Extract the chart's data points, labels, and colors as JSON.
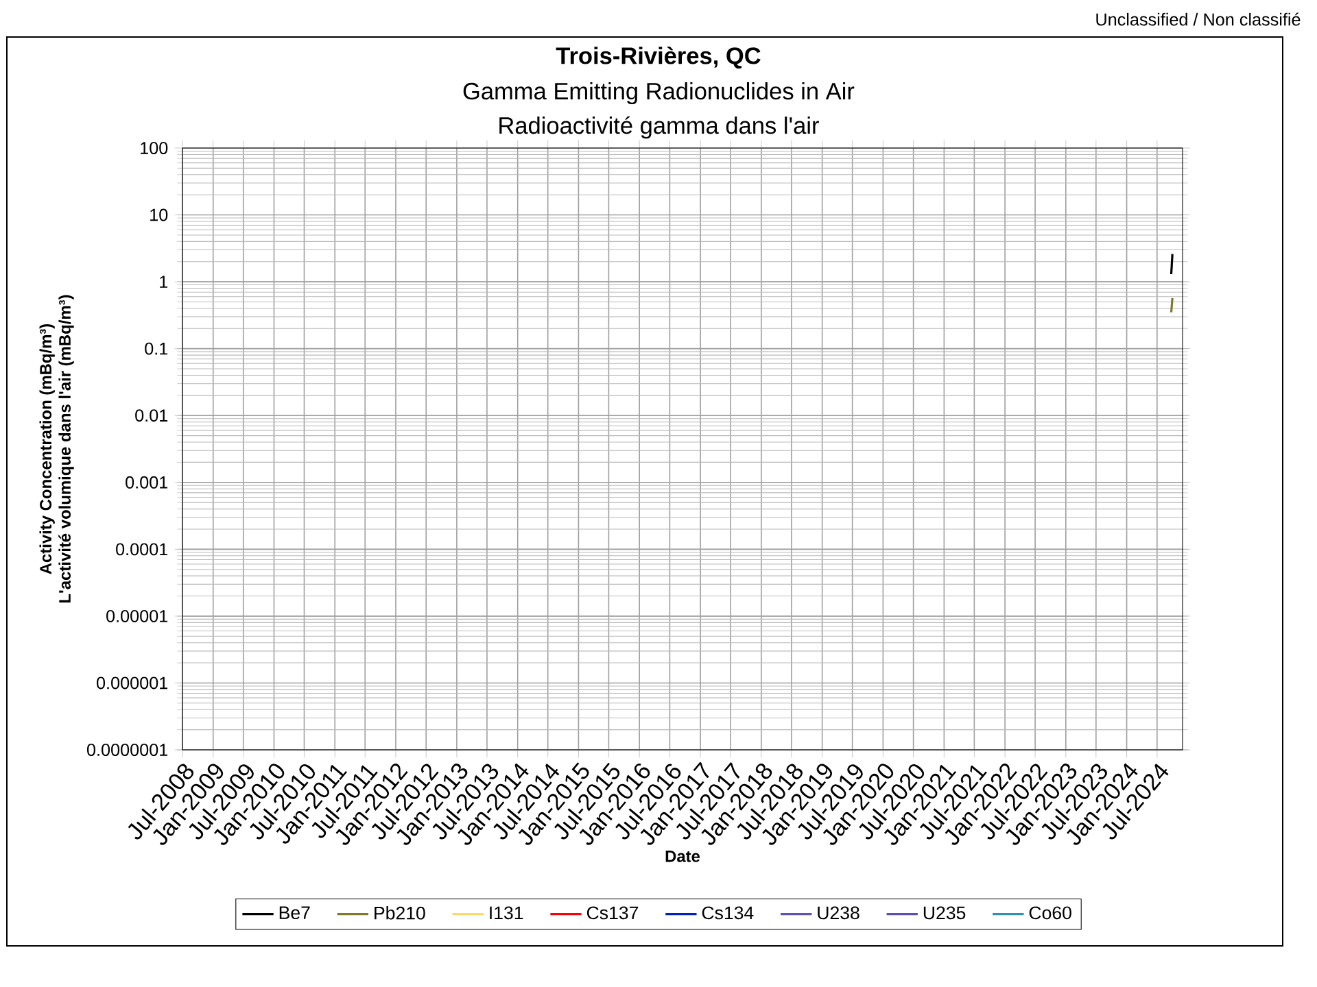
{
  "chart_data": {
    "type": "line",
    "title": "Trois-Rivières, QC",
    "subtitle": [
      "Gamma Emitting Radionuclides in Air",
      "Radioactivité gamma dans l'air"
    ],
    "xlabel": "Date",
    "ylabel": [
      "Activity Concentration  (mBq/m³)",
      "L'activité volumique dans l'air (mBq/m³)"
    ],
    "annotations": [
      "Unclassified / Non classifié"
    ],
    "x": [
      "2024-09-24",
      "2024-10-01"
    ],
    "series": [
      {
        "name": "Be7",
        "color": "#000000",
        "values": [
          1.3,
          2.6
        ]
      },
      {
        "name": "Pb210",
        "color": "#7f7a2a",
        "values": [
          0.35,
          0.57
        ]
      },
      {
        "name": "I131",
        "color": "#ffd966",
        "values": [
          null,
          null
        ]
      },
      {
        "name": "Cs137",
        "color": "#ff0000",
        "values": [
          null,
          null
        ]
      },
      {
        "name": "Cs134",
        "color": "#0020c0",
        "values": [
          null,
          null
        ]
      },
      {
        "name": "U238",
        "color": "#6050b0",
        "values": [
          null,
          null
        ]
      },
      {
        "name": "U235",
        "color": "#5f4bb6",
        "values": [
          null,
          null
        ]
      },
      {
        "name": "Co60",
        "color": "#3090b0",
        "values": [
          null,
          null
        ]
      }
    ],
    "log": "y",
    "grid": true,
    "legend": "bottom",
    "marker": "none",
    "line_style": "solid",
    "xlim": [
      "2008-07",
      "2024-12"
    ],
    "ylim": [
      1e-07,
      100
    ],
    "xticks": [
      {
        "value": "2008-07",
        "label": "Jul-2008"
      },
      {
        "value": "2009-01",
        "label": "Jan-2009"
      },
      {
        "value": "2009-07",
        "label": "Jul-2009"
      },
      {
        "value": "2010-01",
        "label": "Jan-2010"
      },
      {
        "value": "2010-07",
        "label": "Jul-2010"
      },
      {
        "value": "2011-01",
        "label": "Jan-2011"
      },
      {
        "value": "2011-07",
        "label": "Jul-2011"
      },
      {
        "value": "2012-01",
        "label": "Jan-2012"
      },
      {
        "value": "2012-07",
        "label": "Jul-2012"
      },
      {
        "value": "2013-01",
        "label": "Jan-2013"
      },
      {
        "value": "2013-07",
        "label": "Jul-2013"
      },
      {
        "value": "2014-01",
        "label": "Jan-2014"
      },
      {
        "value": "2014-07",
        "label": "Jul-2014"
      },
      {
        "value": "2015-01",
        "label": "Jan-2015"
      },
      {
        "value": "2015-07",
        "label": "Jul-2015"
      },
      {
        "value": "2016-01",
        "label": "Jan-2016"
      },
      {
        "value": "2016-07",
        "label": "Jul-2016"
      },
      {
        "value": "2017-01",
        "label": "Jan-2017"
      },
      {
        "value": "2017-07",
        "label": "Jul-2017"
      },
      {
        "value": "2018-01",
        "label": "Jan-2018"
      },
      {
        "value": "2018-07",
        "label": "Jul-2018"
      },
      {
        "value": "2019-01",
        "label": "Jan-2019"
      },
      {
        "value": "2019-07",
        "label": "Jul-2019"
      },
      {
        "value": "2020-01",
        "label": "Jan-2020"
      },
      {
        "value": "2020-07",
        "label": "Jul-2020"
      },
      {
        "value": "2021-01",
        "label": "Jan-2021"
      },
      {
        "value": "2021-07",
        "label": "Jul-2021"
      },
      {
        "value": "2022-01",
        "label": "Jan-2022"
      },
      {
        "value": "2022-07",
        "label": "Jul-2022"
      },
      {
        "value": "2023-01",
        "label": "Jan-2023"
      },
      {
        "value": "2023-07",
        "label": "Jul-2023"
      },
      {
        "value": "2024-01",
        "label": "Jan-2024"
      },
      {
        "value": "2024-07",
        "label": "Jul-2024"
      }
    ],
    "yticks": [
      {
        "value": 1e-07,
        "label": "0.0000001"
      },
      {
        "value": 1e-06,
        "label": "0.000001"
      },
      {
        "value": 1e-05,
        "label": "0.00001"
      },
      {
        "value": 0.0001,
        "label": "0.0001"
      },
      {
        "value": 0.001,
        "label": "0.001"
      },
      {
        "value": 0.01,
        "label": "0.01"
      },
      {
        "value": 0.1,
        "label": "0.1"
      },
      {
        "value": 1,
        "label": "1"
      },
      {
        "value": 10,
        "label": "10"
      },
      {
        "value": 100,
        "label": "100"
      }
    ]
  }
}
